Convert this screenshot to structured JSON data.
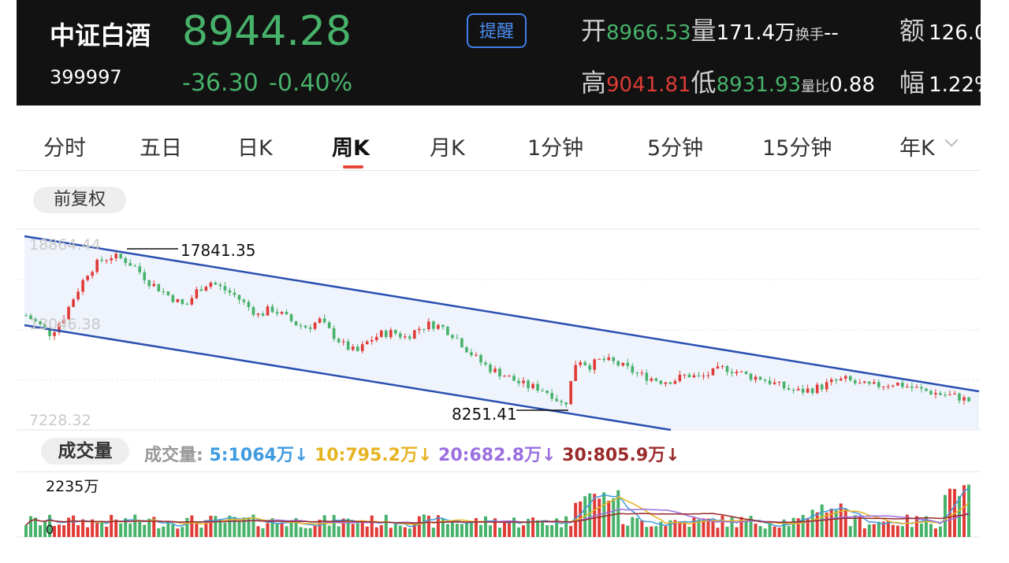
{
  "header": {
    "title": "中证白酒",
    "code": "399997",
    "price": "8944.28",
    "change": "-36.30",
    "change_pct": "-0.40%",
    "remind_label": "提醒",
    "stats": {
      "open_label": "开",
      "open_value": "8966.53",
      "volume_label": "量",
      "volume_value": "171.4万",
      "turnover_label": "换手",
      "turnover_value": "--",
      "amount_label": "额",
      "amount_value": "126.0",
      "high_label": "高",
      "high_value": "9041.81",
      "low_label": "低",
      "low_value": "8931.93",
      "vol_ratio_label": "量比",
      "vol_ratio_value": "0.88",
      "amplitude_label": "幅",
      "amplitude_value": "1.22%"
    },
    "colors": {
      "up": "#e03b36",
      "down": "#47b26a",
      "accent": "#3f7fe8"
    }
  },
  "tabs": [
    {
      "label": "分时"
    },
    {
      "label": "五日"
    },
    {
      "label": "日K"
    },
    {
      "label": "周K",
      "active": true
    },
    {
      "label": "月K"
    },
    {
      "label": "1分钟"
    },
    {
      "label": "5分钟"
    },
    {
      "label": "15分钟"
    },
    {
      "label": "年K"
    }
  ],
  "adjust_label": "前复权",
  "price_chart": {
    "y_top_label": "18864.44",
    "y_mid_label": "13046.38",
    "y_bottom_label": "7228.32",
    "high_marker": "17841.35",
    "low_marker": "8251.41"
  },
  "volume": {
    "pill_label": "成交量",
    "legend_prefix": "成交量:",
    "ma5": "5:1064万↓",
    "ma10": "10:795.2万↓",
    "ma20": "20:682.8万↓",
    "ma30": "30:805.9万↓",
    "y_top_label": "2235万",
    "y_zero_label": "0",
    "colors": {
      "ma5": "#3f9be0",
      "ma10": "#e6b422",
      "ma20": "#9b6fe0",
      "ma30": "#9a2a2a"
    }
  },
  "chart_data": [
    {
      "type": "candlestick",
      "title": "周K",
      "ylim": [
        7228.32,
        18864.44
      ],
      "annotations": [
        {
          "label": "17841.35",
          "value": 17841.35
        },
        {
          "label": "8251.41",
          "value": 8251.41
        }
      ],
      "close_trend": [
        14000,
        13500,
        12900,
        13800,
        15200,
        16500,
        17200,
        17500,
        17300,
        16800,
        16000,
        15500,
        15000,
        14500,
        15500,
        16000,
        15600,
        15200,
        14600,
        14000,
        14400,
        14000,
        13500,
        13300,
        13700,
        12900,
        12200,
        11800,
        12500,
        12900,
        13000,
        12700,
        13200,
        13500,
        13300,
        12800,
        12000,
        11300,
        10800,
        10500,
        10100,
        9800,
        9700,
        9300,
        8600,
        11500,
        11000,
        11400,
        11200,
        10900,
        10500,
        10300,
        10100,
        10200,
        10500,
        10300,
        10600,
        10900,
        10700,
        10400,
        10300,
        10000,
        9700,
        9500,
        9600,
        9800,
        10100,
        10200,
        9900,
        9800,
        9900,
        10000,
        9800,
        9600,
        9450,
        9300,
        9200,
        8944.28
      ]
    },
    {
      "type": "bar",
      "title": "成交量",
      "ylim": [
        0,
        2235
      ],
      "series": [
        {
          "name": "5",
          "last": 1064
        },
        {
          "name": "10",
          "last": 795.2
        },
        {
          "name": "20",
          "last": 682.8
        },
        {
          "name": "30",
          "last": 805.9
        }
      ]
    }
  ]
}
